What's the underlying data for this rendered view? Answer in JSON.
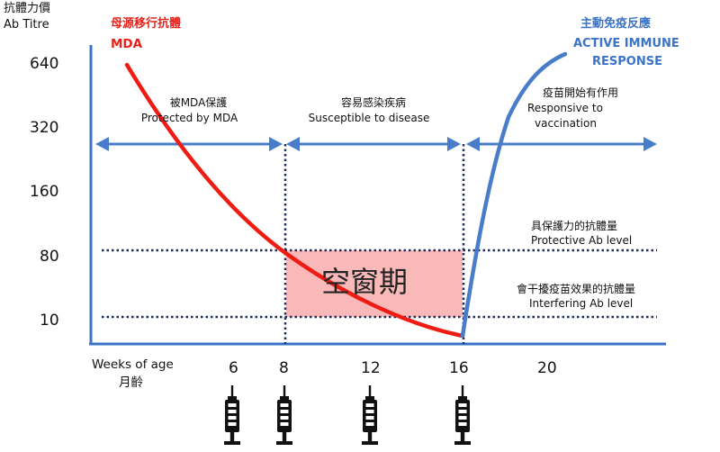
{
  "y_axis": {
    "title_cn": "抗體力價",
    "title_en": "Ab Titre",
    "ticks": [
      "640",
      "320",
      "160",
      "80",
      "10"
    ]
  },
  "x_axis": {
    "title_en": "Weeks of  age",
    "title_cn": "月齡",
    "ticks": [
      "6",
      "8",
      "12",
      "16",
      "20"
    ]
  },
  "mda": {
    "label_cn": "母源移行抗體",
    "label_en": "MDA",
    "color": "#e4221b"
  },
  "active": {
    "label_cn": "主動免疫反應",
    "label_en_1": "ACTIVE IMMUNE",
    "label_en_2": "RESPONSE",
    "color": "#3b73c7"
  },
  "phases": {
    "protected": {
      "cn": "被MDA保護",
      "en": "Protected  by MDA"
    },
    "susceptible": {
      "cn": "容易感染疾病",
      "en": "Susceptible to disease"
    },
    "vaccination": {
      "cn": "疫苗開始有作用",
      "en_1": "Responsive to",
      "en_2": "vaccination"
    }
  },
  "levels": {
    "protective": {
      "cn": "具保護力的抗體量",
      "en": "Protective Ab level"
    },
    "interfering": {
      "cn": "會干擾疫苗效果的抗體量",
      "en": "Interfering Ab level"
    }
  },
  "window": {
    "label": "空窗期",
    "color": "#f9b9b9"
  },
  "syringes": [
    "syringe-icon",
    "syringe-icon",
    "syringe-icon",
    "syringe-icon"
  ]
}
